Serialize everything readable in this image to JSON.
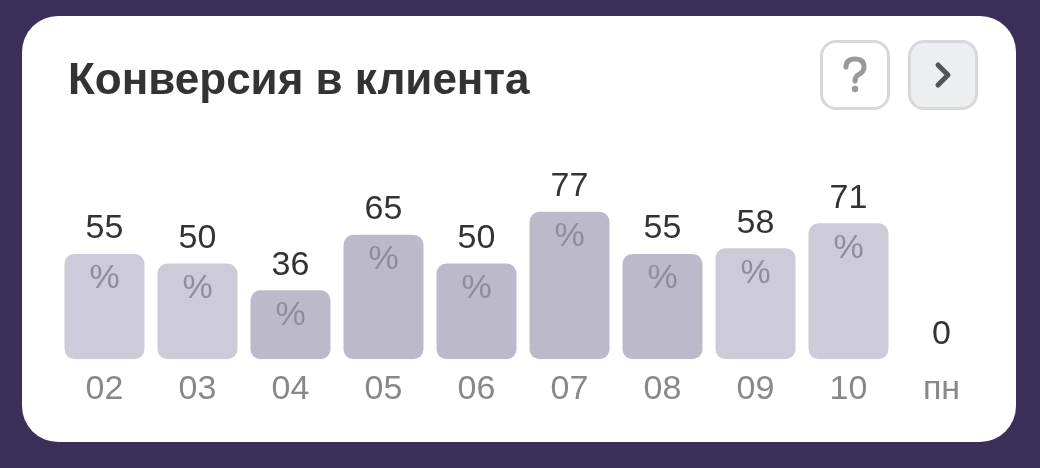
{
  "chart_data": {
    "type": "bar",
    "title": "Конверсия в клиента",
    "categories": [
      "02",
      "03",
      "04",
      "05",
      "06",
      "07",
      "08",
      "09",
      "10",
      "пн"
    ],
    "values": [
      55,
      50,
      36,
      65,
      50,
      77,
      55,
      58,
      71,
      0
    ],
    "colors": [
      "#cdcbd9",
      "#cdcbd9",
      "#bcb9cb",
      "#bcb9cb",
      "#bcb9cb",
      "#bcb9cb",
      "#bcb9cb",
      "#cdcbd9",
      "#cdcbd9",
      "#bcb9cb"
    ],
    "value_labels": [
      "55 %",
      "50 %",
      "36 %",
      "65 %",
      "50 %",
      "77 %",
      "55 %",
      "58 %",
      "71 %",
      "0 %"
    ],
    "grid": false,
    "legend": false,
    "tick_labels": "x"
  }
}
